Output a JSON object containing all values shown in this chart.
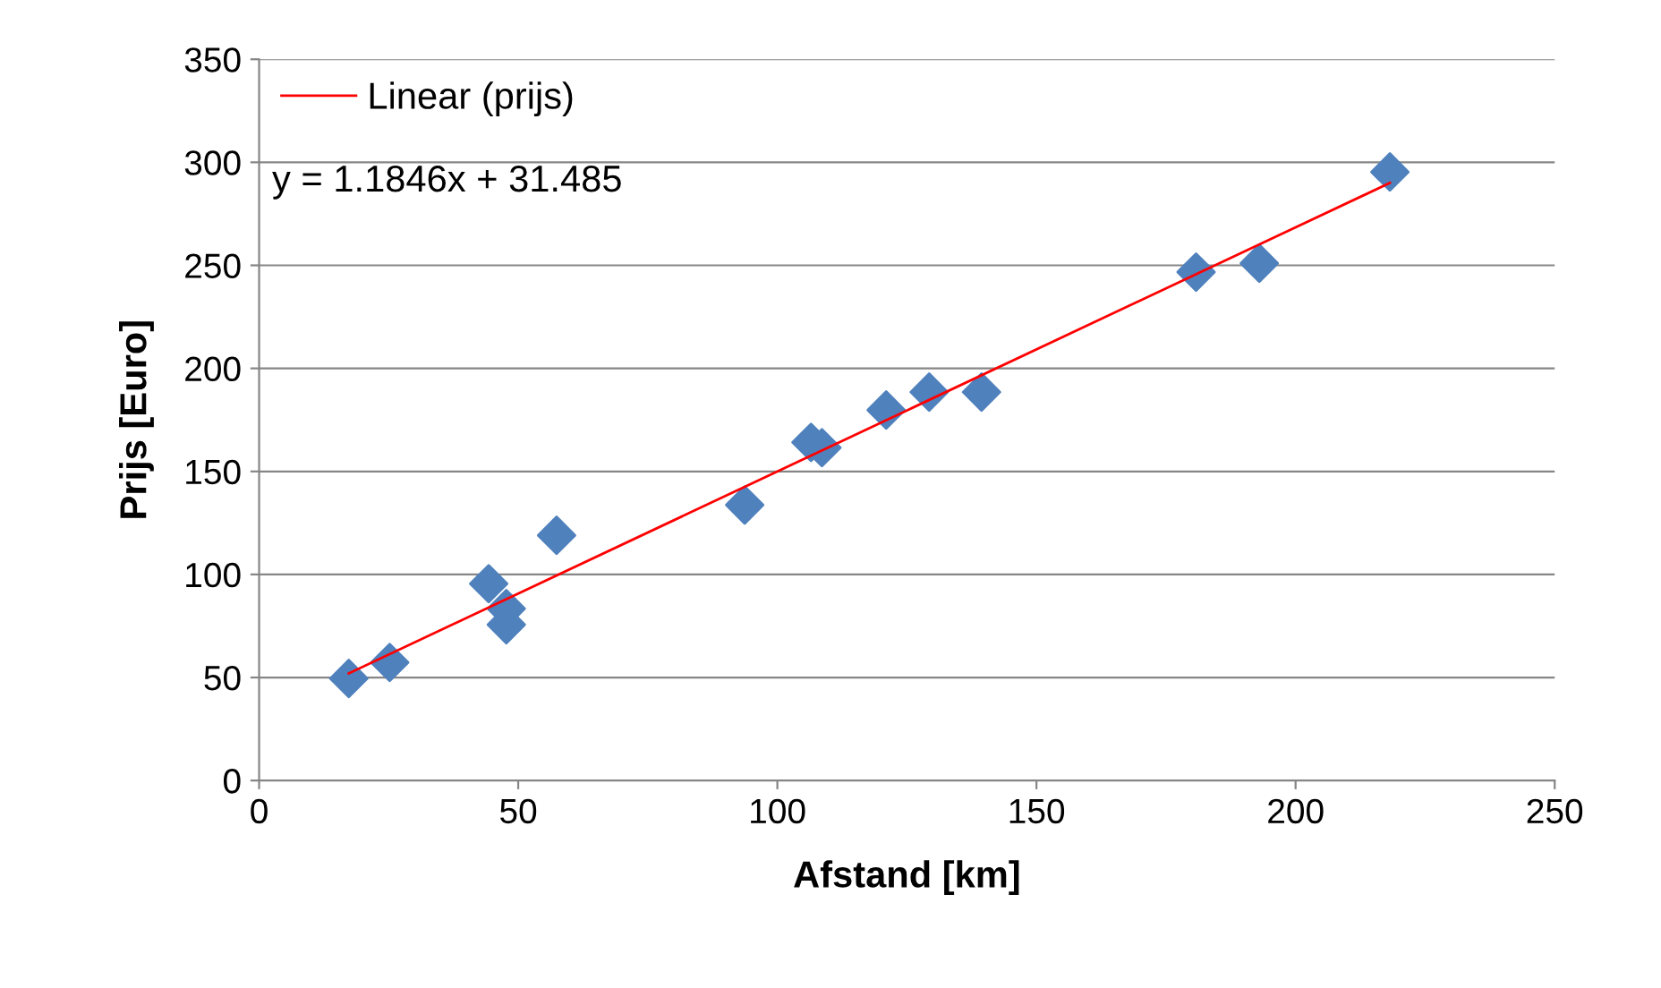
{
  "chart_data": {
    "type": "scatter",
    "xlabel": "Afstand [km]",
    "ylabel": "Prijs [Euro]",
    "xlim": [
      0,
      250
    ],
    "xticks": [
      0,
      50,
      100,
      150,
      200,
      250
    ],
    "ylim": [
      0,
      350
    ],
    "yticks": [
      0,
      50,
      100,
      150,
      200,
      250,
      300,
      350
    ],
    "grid": "y",
    "legend": "top left",
    "marker": "diamond",
    "annotations": [
      "y = 1.1846x + 31.485"
    ],
    "series": [
      {
        "color": "#4f81bd",
        "x": [
          17.3,
          25.2,
          44.3,
          47.7,
          47.7,
          57.4,
          93.7,
          106.5,
          108.6,
          121.0,
          129.3,
          139.4,
          180.8,
          193.0,
          218.2
        ],
        "values": [
          49.5,
          57.3,
          95.5,
          83.4,
          75.6,
          119,
          133.7,
          164.1,
          161.5,
          179.8,
          188.5,
          188.5,
          246.7,
          251,
          295.3
        ]
      },
      {
        "type": "line",
        "name": "Linear (prijs)",
        "color": "#ff0000",
        "line_style": "solid",
        "marker": "none",
        "x": [
          17.3,
          218.2
        ],
        "values": [
          52.0,
          290.0
        ]
      }
    ]
  }
}
